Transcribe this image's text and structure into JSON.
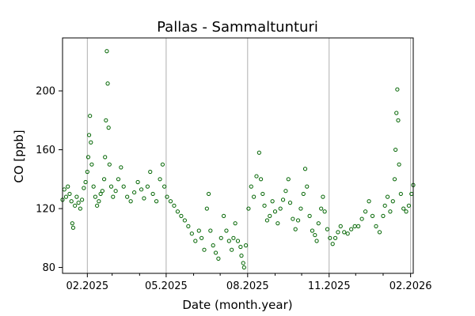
{
  "chart_data": {
    "type": "scatter",
    "title": "Pallas - Sammaltunturi",
    "xlabel": "Date (month.year)",
    "ylabel": "CO [ppb]",
    "x_axis": {
      "type": "date",
      "range": [
        "2025-01-04",
        "2026-02-04"
      ],
      "ticks": [
        "2025-02-01",
        "2025-05-01",
        "2025-08-01",
        "2025-11-01",
        "2026-02-01"
      ],
      "tick_labels": [
        "02.2025",
        "05.2025",
        "08.2025",
        "11.2025",
        "02.2026"
      ],
      "minor_ticks": [
        "2025-03-01",
        "2025-04-01",
        "2025-06-01",
        "2025-07-01",
        "2025-09-01",
        "2025-10-01",
        "2025-12-01",
        "2026-01-01"
      ],
      "vertical_grid": true
    },
    "y_axis": {
      "range": [
        76,
        236
      ],
      "ticks": [
        80,
        120,
        160,
        200
      ],
      "tick_labels": [
        "80",
        "120",
        "160",
        "200"
      ]
    },
    "marker": {
      "shape": "open-circle",
      "color": "#006400"
    },
    "series": [
      {
        "points": [
          [
            "2025-01-04",
            126
          ],
          [
            "2025-01-06",
            133
          ],
          [
            "2025-01-08",
            128
          ],
          [
            "2025-01-10",
            135
          ],
          [
            "2025-01-12",
            130
          ],
          [
            "2025-01-14",
            125
          ],
          [
            "2025-01-15",
            110
          ],
          [
            "2025-01-16",
            107
          ],
          [
            "2025-01-18",
            122
          ],
          [
            "2025-01-20",
            128
          ],
          [
            "2025-01-22",
            124
          ],
          [
            "2025-01-24",
            120
          ],
          [
            "2025-01-26",
            126
          ],
          [
            "2025-01-28",
            134
          ],
          [
            "2025-01-30",
            138
          ],
          [
            "2025-02-01",
            145
          ],
          [
            "2025-02-02",
            155
          ],
          [
            "2025-02-03",
            170
          ],
          [
            "2025-02-04",
            183
          ],
          [
            "2025-02-05",
            165
          ],
          [
            "2025-02-06",
            150
          ],
          [
            "2025-02-08",
            135
          ],
          [
            "2025-02-10",
            128
          ],
          [
            "2025-02-12",
            122
          ],
          [
            "2025-02-14",
            125
          ],
          [
            "2025-02-16",
            130
          ],
          [
            "2025-02-18",
            132
          ],
          [
            "2025-02-20",
            140
          ],
          [
            "2025-02-21",
            155
          ],
          [
            "2025-02-22",
            180
          ],
          [
            "2025-02-23",
            227
          ],
          [
            "2025-02-24",
            205
          ],
          [
            "2025-02-25",
            175
          ],
          [
            "2025-02-26",
            150
          ],
          [
            "2025-02-28",
            135
          ],
          [
            "2025-03-02",
            128
          ],
          [
            "2025-03-05",
            132
          ],
          [
            "2025-03-08",
            140
          ],
          [
            "2025-03-11",
            148
          ],
          [
            "2025-03-14",
            135
          ],
          [
            "2025-03-18",
            128
          ],
          [
            "2025-03-22",
            125
          ],
          [
            "2025-03-26",
            131
          ],
          [
            "2025-03-30",
            138
          ],
          [
            "2025-04-03",
            133
          ],
          [
            "2025-04-06",
            127
          ],
          [
            "2025-04-10",
            135
          ],
          [
            "2025-04-13",
            145
          ],
          [
            "2025-04-16",
            130
          ],
          [
            "2025-04-20",
            125
          ],
          [
            "2025-04-24",
            140
          ],
          [
            "2025-04-27",
            150
          ],
          [
            "2025-04-29",
            135
          ],
          [
            "2025-05-02",
            128
          ],
          [
            "2025-05-06",
            125
          ],
          [
            "2025-05-10",
            122
          ],
          [
            "2025-05-14",
            118
          ],
          [
            "2025-05-18",
            115
          ],
          [
            "2025-05-22",
            112
          ],
          [
            "2025-05-26",
            108
          ],
          [
            "2025-05-30",
            103
          ],
          [
            "2025-06-03",
            98
          ],
          [
            "2025-06-07",
            105
          ],
          [
            "2025-06-10",
            100
          ],
          [
            "2025-06-13",
            92
          ],
          [
            "2025-06-16",
            120
          ],
          [
            "2025-06-18",
            130
          ],
          [
            "2025-06-20",
            105
          ],
          [
            "2025-06-23",
            95
          ],
          [
            "2025-06-26",
            90
          ],
          [
            "2025-06-29",
            86
          ],
          [
            "2025-07-02",
            100
          ],
          [
            "2025-07-05",
            115
          ],
          [
            "2025-07-08",
            105
          ],
          [
            "2025-07-11",
            98
          ],
          [
            "2025-07-14",
            92
          ],
          [
            "2025-07-16",
            100
          ],
          [
            "2025-07-18",
            110
          ],
          [
            "2025-07-21",
            98
          ],
          [
            "2025-07-24",
            94
          ],
          [
            "2025-07-25",
            88
          ],
          [
            "2025-07-27",
            83
          ],
          [
            "2025-07-28",
            80
          ],
          [
            "2025-07-30",
            95
          ],
          [
            "2025-08-02",
            120
          ],
          [
            "2025-08-05",
            135
          ],
          [
            "2025-08-08",
            128
          ],
          [
            "2025-08-11",
            142
          ],
          [
            "2025-08-14",
            158
          ],
          [
            "2025-08-16",
            140
          ],
          [
            "2025-08-18",
            130
          ],
          [
            "2025-08-20",
            122
          ],
          [
            "2025-08-23",
            112
          ],
          [
            "2025-08-26",
            115
          ],
          [
            "2025-08-29",
            125
          ],
          [
            "2025-09-01",
            118
          ],
          [
            "2025-09-04",
            110
          ],
          [
            "2025-09-07",
            120
          ],
          [
            "2025-09-10",
            126
          ],
          [
            "2025-09-13",
            132
          ],
          [
            "2025-09-16",
            140
          ],
          [
            "2025-09-18",
            124
          ],
          [
            "2025-09-21",
            113
          ],
          [
            "2025-09-24",
            106
          ],
          [
            "2025-09-27",
            112
          ],
          [
            "2025-09-30",
            120
          ],
          [
            "2025-10-03",
            130
          ],
          [
            "2025-10-05",
            147
          ],
          [
            "2025-10-07",
            135
          ],
          [
            "2025-10-10",
            115
          ],
          [
            "2025-10-13",
            105
          ],
          [
            "2025-10-16",
            102
          ],
          [
            "2025-10-18",
            98
          ],
          [
            "2025-10-20",
            110
          ],
          [
            "2025-10-23",
            120
          ],
          [
            "2025-10-25",
            128
          ],
          [
            "2025-10-27",
            118
          ],
          [
            "2025-10-30",
            106
          ],
          [
            "2025-11-02",
            100
          ],
          [
            "2025-11-05",
            96
          ],
          [
            "2025-11-08",
            100
          ],
          [
            "2025-11-11",
            104
          ],
          [
            "2025-11-14",
            108
          ],
          [
            "2025-11-18",
            104
          ],
          [
            "2025-11-22",
            103
          ],
          [
            "2025-11-26",
            106
          ],
          [
            "2025-11-30",
            108
          ],
          [
            "2025-12-04",
            108
          ],
          [
            "2025-12-08",
            113
          ],
          [
            "2025-12-12",
            118
          ],
          [
            "2025-12-16",
            125
          ],
          [
            "2025-12-20",
            115
          ],
          [
            "2025-12-24",
            108
          ],
          [
            "2025-12-28",
            104
          ],
          [
            "2026-01-01",
            115
          ],
          [
            "2026-01-03",
            122
          ],
          [
            "2026-01-06",
            128
          ],
          [
            "2026-01-09",
            118
          ],
          [
            "2026-01-12",
            125
          ],
          [
            "2026-01-14",
            140
          ],
          [
            "2026-01-15",
            160
          ],
          [
            "2026-01-16",
            185
          ],
          [
            "2026-01-17",
            201
          ],
          [
            "2026-01-18",
            180
          ],
          [
            "2026-01-19",
            150
          ],
          [
            "2026-01-21",
            130
          ],
          [
            "2026-01-24",
            120
          ],
          [
            "2026-01-27",
            118
          ],
          [
            "2026-01-30",
            122
          ],
          [
            "2026-02-02",
            130
          ],
          [
            "2026-02-04",
            136
          ]
        ]
      }
    ]
  }
}
